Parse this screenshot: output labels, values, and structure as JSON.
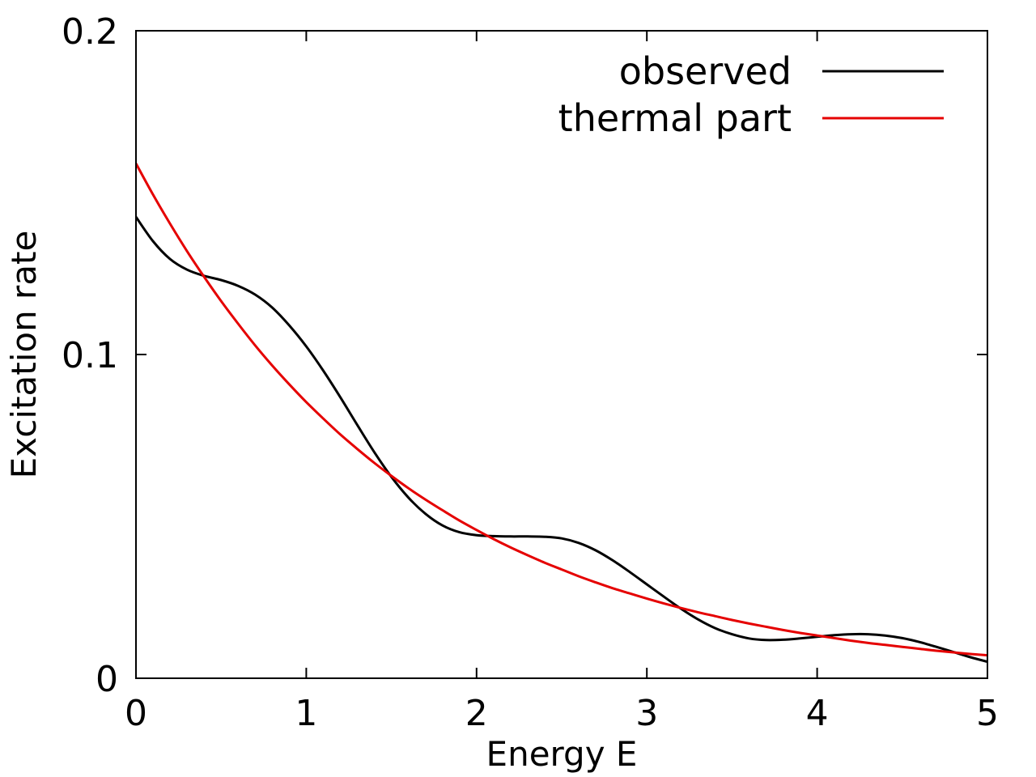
{
  "chart_data": {
    "type": "line",
    "title": "",
    "xlabel": "Energy E",
    "ylabel": "Excitation rate",
    "xlim": [
      0,
      5
    ],
    "ylim": [
      0,
      0.2
    ],
    "x_ticks": [
      0,
      1,
      2,
      3,
      4,
      5
    ],
    "x_tick_labels": [
      "0",
      "1",
      "2",
      "3",
      "4",
      "5"
    ],
    "y_ticks": [
      0,
      0.1,
      0.2
    ],
    "y_tick_labels": [
      "0",
      "0.1",
      "0.2"
    ],
    "grid": false,
    "legend_position": "top-right",
    "series": [
      {
        "name": "observed",
        "color": "#000000",
        "x": [
          0,
          0.1,
          0.2,
          0.3,
          0.4,
          0.5,
          0.6,
          0.7,
          0.8,
          0.9,
          1.0,
          1.1,
          1.2,
          1.3,
          1.4,
          1.5,
          1.6,
          1.7,
          1.8,
          1.9,
          2.0,
          2.1,
          2.2,
          2.3,
          2.4,
          2.5,
          2.6,
          2.7,
          2.8,
          2.9,
          3.0,
          3.1,
          3.2,
          3.3,
          3.4,
          3.5,
          3.6,
          3.7,
          3.8,
          3.9,
          4.0,
          4.1,
          4.2,
          4.3,
          4.4,
          4.5,
          4.6,
          4.7,
          4.8,
          4.9,
          5.0
        ],
        "y": [
          0.1425,
          0.135,
          0.1295,
          0.1262,
          0.1243,
          0.123,
          0.1212,
          0.1185,
          0.1145,
          0.109,
          0.1025,
          0.095,
          0.0868,
          0.0782,
          0.0698,
          0.0622,
          0.0558,
          0.0508,
          0.0472,
          0.0451,
          0.0442,
          0.0439,
          0.0438,
          0.0438,
          0.0437,
          0.0432,
          0.0418,
          0.0395,
          0.0364,
          0.0328,
          0.029,
          0.0252,
          0.0215,
          0.0182,
          0.0155,
          0.0136,
          0.0123,
          0.0118,
          0.0119,
          0.0123,
          0.0128,
          0.0133,
          0.0136,
          0.0136,
          0.0132,
          0.0124,
          0.0112,
          0.0097,
          0.0081,
          0.0065,
          0.0051
        ]
      },
      {
        "name": "thermal part",
        "color": "#e50000",
        "x": [
          0,
          0.1,
          0.2,
          0.3,
          0.4,
          0.5,
          0.6,
          0.7,
          0.8,
          0.9,
          1.0,
          1.1,
          1.2,
          1.3,
          1.4,
          1.5,
          1.6,
          1.7,
          1.8,
          1.9,
          2.0,
          2.1,
          2.2,
          2.3,
          2.4,
          2.5,
          2.6,
          2.7,
          2.8,
          2.9,
          3.0,
          3.1,
          3.2,
          3.3,
          3.4,
          3.5,
          3.6,
          3.7,
          3.8,
          3.9,
          4.0,
          4.1,
          4.2,
          4.3,
          4.4,
          4.5,
          4.6,
          4.7,
          4.8,
          4.9,
          5.0
        ],
        "y": [
          0.159,
          0.1494,
          0.1404,
          0.1319,
          0.124,
          0.1165,
          0.1095,
          0.1028,
          0.0966,
          0.0908,
          0.0853,
          0.0802,
          0.0753,
          0.0708,
          0.0665,
          0.0625,
          0.0587,
          0.0552,
          0.0519,
          0.0487,
          0.0458,
          0.043,
          0.0404,
          0.038,
          0.0357,
          0.0336,
          0.0315,
          0.0296,
          0.0278,
          0.0262,
          0.0246,
          0.0231,
          0.0217,
          0.0204,
          0.0192,
          0.018,
          0.0169,
          0.0159,
          0.0149,
          0.014,
          0.0132,
          0.0124,
          0.0116,
          0.0109,
          0.0103,
          0.0097,
          0.0091,
          0.0085,
          0.008,
          0.0075,
          0.0071
        ]
      }
    ]
  }
}
